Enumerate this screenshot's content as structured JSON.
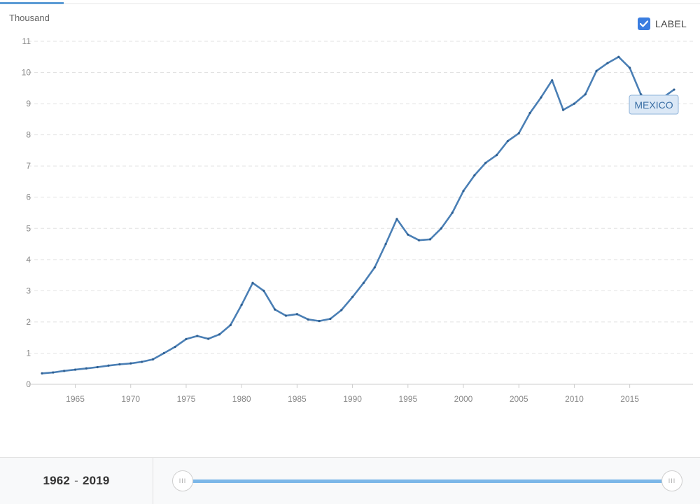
{
  "chart_data": {
    "type": "line",
    "ylabel": "Thousand",
    "ylim": [
      0,
      11
    ],
    "y_ticks": [
      "0",
      "1",
      "2",
      "3",
      "4",
      "5",
      "6",
      "7",
      "8",
      "9",
      "10",
      "11"
    ],
    "xlim": [
      1962,
      2019
    ],
    "x_ticks": [
      "1965",
      "1970",
      "1975",
      "1980",
      "1985",
      "1990",
      "1995",
      "2000",
      "2005",
      "2010",
      "2015"
    ],
    "grid": "horizontal dashed",
    "series": [
      {
        "name": "MEXICO",
        "color": "#4a7fb5",
        "x": [
          1962,
          1963,
          1964,
          1965,
          1966,
          1967,
          1968,
          1969,
          1970,
          1971,
          1972,
          1973,
          1974,
          1975,
          1976,
          1977,
          1978,
          1979,
          1980,
          1981,
          1982,
          1983,
          1984,
          1985,
          1986,
          1987,
          1988,
          1989,
          1990,
          1991,
          1992,
          1993,
          1994,
          1995,
          1996,
          1997,
          1998,
          1999,
          2000,
          2001,
          2002,
          2003,
          2004,
          2005,
          2006,
          2007,
          2008,
          2009,
          2010,
          2011,
          2012,
          2013,
          2014,
          2015,
          2016,
          2017,
          2018,
          2019
        ],
        "values": [
          0.35,
          0.38,
          0.43,
          0.47,
          0.51,
          0.55,
          0.6,
          0.64,
          0.67,
          0.72,
          0.8,
          1.0,
          1.2,
          1.45,
          1.55,
          1.46,
          1.6,
          1.9,
          2.55,
          3.25,
          3.0,
          2.4,
          2.2,
          2.25,
          2.08,
          2.03,
          2.1,
          2.38,
          2.8,
          3.25,
          3.75,
          4.5,
          5.3,
          4.8,
          4.62,
          4.65,
          5.0,
          5.5,
          6.2,
          6.7,
          7.1,
          7.35,
          7.8,
          8.05,
          8.7,
          9.2,
          9.75,
          8.8,
          9.0,
          9.3,
          10.05,
          10.3,
          10.5,
          10.15,
          9.3,
          9.0,
          9.2,
          9.45
        ]
      }
    ],
    "label_toggle": {
      "text": "LABEL",
      "checked": true
    },
    "end_label": "MEXICO"
  },
  "range": {
    "start": "1962",
    "separator": "-",
    "end": "2019"
  },
  "slider": {
    "start_handle": "III",
    "end_handle": "III"
  }
}
